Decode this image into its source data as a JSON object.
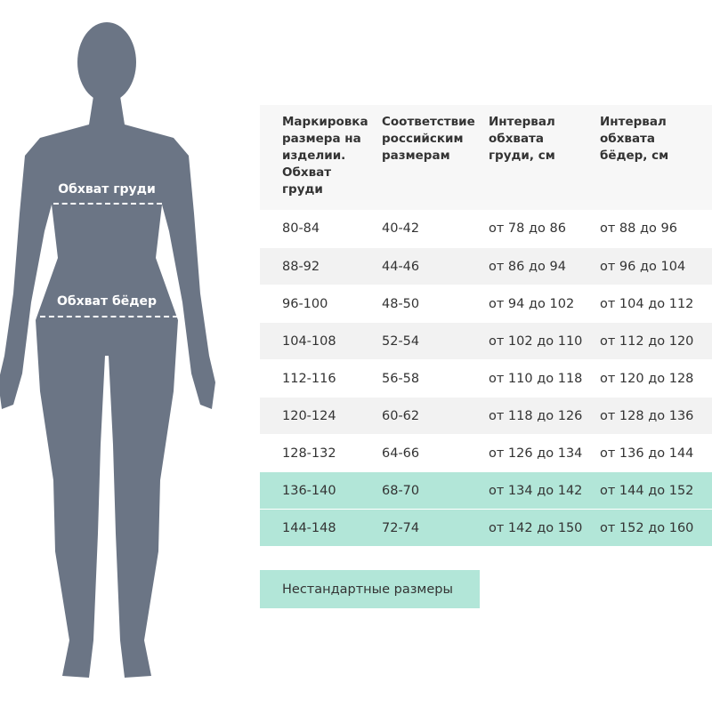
{
  "figure": {
    "color": "#6b7585",
    "chest_label": "Обхват груди",
    "hip_label": "Обхват бёдер"
  },
  "table": {
    "headers": [
      "Маркировка размера на изделии. Обхват груди",
      "Соответствие российским размерам",
      "Интервал обхвата груди, см",
      "Интервал обхвата бёдер, см"
    ],
    "rows": [
      {
        "cells": [
          "80-84",
          "40-42",
          "от 78 до 86",
          "от 88 до 96"
        ],
        "style": "white"
      },
      {
        "cells": [
          "88-92",
          "44-46",
          "от 86 до 94",
          "от 96 до 104"
        ],
        "style": "gray"
      },
      {
        "cells": [
          "96-100",
          "48-50",
          "от 94 до 102",
          "от 104 до 112"
        ],
        "style": "white"
      },
      {
        "cells": [
          "104-108",
          "52-54",
          "от 102 до 110",
          "от 112 до 120"
        ],
        "style": "gray"
      },
      {
        "cells": [
          "112-116",
          "56-58",
          "от 110 до 118",
          "от 120 до 128"
        ],
        "style": "white"
      },
      {
        "cells": [
          "120-124",
          "60-62",
          "от 118 до 126",
          "от 128 до 136"
        ],
        "style": "gray"
      },
      {
        "cells": [
          "128-132",
          "64-66",
          "от 126 до 134",
          "от 136 до 144"
        ],
        "style": "white"
      },
      {
        "cells": [
          "136-140",
          "68-70",
          "от 134 до 142",
          "от 144 до 152"
        ],
        "style": "teal"
      },
      {
        "cells": [
          "144-148",
          "72-74",
          "от 142 до 150",
          "от 152 до 160"
        ],
        "style": "teal"
      }
    ]
  },
  "legend": {
    "label": "Нестандартные размеры",
    "color": "#b2e6d8"
  }
}
